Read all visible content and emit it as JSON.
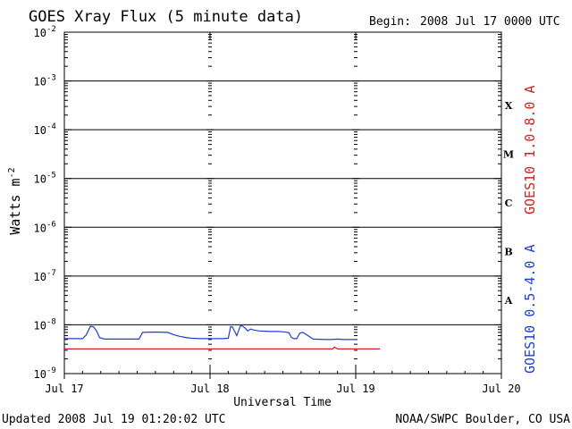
{
  "title": "GOES Xray Flux (5 minute data)",
  "begin_label": "Begin:",
  "begin_value": "2008 Jul 17 0000 UTC",
  "updated": "Updated 2008 Jul 19 01:20:02 UTC",
  "credit": "NOAA/SWPC Boulder, CO USA",
  "colors": {
    "red": "#d02020",
    "blue": "#1c3fd0",
    "axis": "#000000"
  },
  "chart_data": {
    "type": "line",
    "title": "GOES Xray Flux (5 minute data)",
    "xlabel": "Universal Time",
    "ylabel": "Watts m",
    "ylabel_sup": "-2",
    "yscale": "log",
    "ylim": [
      1e-09,
      0.01
    ],
    "xlim": [
      0,
      72
    ],
    "x_unit": "hours since 2008 Jul 17 0000 UTC",
    "x_ticks": [
      {
        "x": 0,
        "label": "Jul 17"
      },
      {
        "x": 24,
        "label": "Jul 18"
      },
      {
        "x": 48,
        "label": "Jul 19"
      },
      {
        "x": 72,
        "label": "Jul 20"
      }
    ],
    "y_ticks": [
      {
        "exp": -2
      },
      {
        "exp": -3
      },
      {
        "exp": -4
      },
      {
        "exp": -5
      },
      {
        "exp": -6
      },
      {
        "exp": -7
      },
      {
        "exp": -8
      },
      {
        "exp": -9
      }
    ],
    "y_tick_base": "10",
    "flare_classes": [
      {
        "label": "X",
        "low": 0.0001,
        "high": 0.001
      },
      {
        "label": "M",
        "low": 1e-05,
        "high": 0.0001
      },
      {
        "label": "C",
        "low": 1e-06,
        "high": 1e-05
      },
      {
        "label": "B",
        "low": 1e-07,
        "high": 1e-06
      },
      {
        "label": "A",
        "low": 1e-08,
        "high": 1e-07
      }
    ],
    "grid": "horizontal lines at decades from 1e-8 to 1e-3; dashed verticals at day boundaries",
    "series": [
      {
        "name": "GOES10 1.0-8.0 A",
        "color": "#d02020",
        "x": [
          0,
          10,
          20,
          30,
          40,
          44.2,
          44.5,
          45,
          52
        ],
        "y": [
          3.2e-09,
          3.2e-09,
          3.2e-09,
          3.2e-09,
          3.2e-09,
          3.2e-09,
          3.5e-09,
          3.2e-09,
          3.2e-09
        ]
      },
      {
        "name": "GOES10 0.5-4.0 A",
        "color": "#1c3fd0",
        "x": [
          0,
          3.0,
          3.6,
          4.3,
          4.8,
          5.3,
          5.8,
          6.3,
          6.8,
          7.5,
          8.5,
          9.5,
          11,
          12.3,
          12.9,
          15,
          17,
          18,
          19,
          20,
          21,
          22.5,
          24,
          26,
          27,
          27.4,
          27.7,
          28.4,
          29.0,
          29.4,
          29.8,
          30.2,
          30.7,
          31.2,
          32.0,
          33.0,
          34.0,
          35.0,
          36.0,
          37.0,
          37.4,
          37.8,
          38.3,
          38.8,
          39.3,
          41,
          43,
          44,
          45,
          46,
          46.8,
          48
        ],
        "y": [
          5.2e-09,
          5.2e-09,
          6.2e-09,
          9.3e-09,
          9.1e-09,
          7.5e-09,
          5.5e-09,
          5.2e-09,
          5.1e-09,
          5.1e-09,
          5.1e-09,
          5.1e-09,
          5.1e-09,
          5.1e-09,
          7e-09,
          7.1e-09,
          7e-09,
          6.3e-09,
          5.8e-09,
          5.5e-09,
          5.3e-09,
          5.2e-09,
          5.2e-09,
          5.2e-09,
          5.3e-09,
          9.2e-09,
          9e-09,
          6e-09,
          9.5e-09,
          9.4e-09,
          8.5e-09,
          7.5e-09,
          8.2e-09,
          7.8e-09,
          7.5e-09,
          7.4e-09,
          7.3e-09,
          7.3e-09,
          7.2e-09,
          6.9e-09,
          5.5e-09,
          5.2e-09,
          5.2e-09,
          6.8e-09,
          7e-09,
          5.1e-09,
          5e-09,
          5e-09,
          5.1e-09,
          5e-09,
          5e-09,
          5e-09
        ]
      }
    ]
  }
}
